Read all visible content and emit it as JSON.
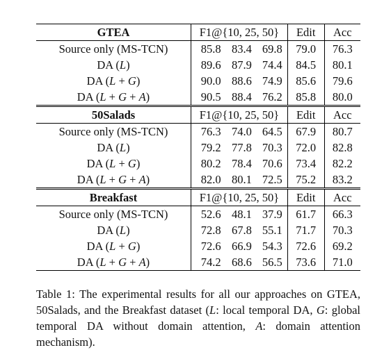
{
  "table": {
    "columns": {
      "f1": "F1@{10, 25, 50}",
      "edit": "Edit",
      "acc": "Acc"
    },
    "sections": [
      {
        "dataset": "GTEA",
        "rows": [
          {
            "method": "Source only (MS-TCN)",
            "values": [
              "85.8",
              "83.4",
              "69.8",
              "79.0",
              "76.3"
            ]
          },
          {
            "method": "DA (L)",
            "values": [
              "89.6",
              "87.9",
              "74.4",
              "84.5",
              "80.1"
            ]
          },
          {
            "method": "DA (L + G)",
            "values": [
              "90.0",
              "88.6",
              "74.9",
              "85.6",
              "79.6"
            ]
          },
          {
            "method": "DA (L + G + A)",
            "values": [
              "90.5",
              "88.4",
              "76.2",
              "85.8",
              "80.0"
            ]
          }
        ]
      },
      {
        "dataset": "50Salads",
        "rows": [
          {
            "method": "Source only (MS-TCN)",
            "values": [
              "76.3",
              "74.0",
              "64.5",
              "67.9",
              "80.7"
            ]
          },
          {
            "method": "DA (L)",
            "values": [
              "79.2",
              "77.8",
              "70.3",
              "72.0",
              "82.8"
            ]
          },
          {
            "method": "DA (L + G)",
            "values": [
              "80.2",
              "78.4",
              "70.6",
              "73.4",
              "82.2"
            ]
          },
          {
            "method": "DA (L + G + A)",
            "values": [
              "82.0",
              "80.1",
              "72.5",
              "75.2",
              "83.2"
            ]
          }
        ]
      },
      {
        "dataset": "Breakfast",
        "rows": [
          {
            "method": "Source only (MS-TCN)",
            "values": [
              "52.6",
              "48.1",
              "37.9",
              "61.7",
              "66.3"
            ]
          },
          {
            "method": "DA (L)",
            "values": [
              "72.8",
              "67.8",
              "55.1",
              "71.7",
              "70.3"
            ]
          },
          {
            "method": "DA (L + G)",
            "values": [
              "72.6",
              "66.9",
              "54.3",
              "72.6",
              "69.2"
            ]
          },
          {
            "method": "DA (L + G + A)",
            "values": [
              "74.2",
              "68.6",
              "56.5",
              "73.6",
              "71.0"
            ]
          }
        ]
      }
    ]
  },
  "caption": {
    "t1": "Table 1: The experimental results for all our approaches on GTEA, 50Salads, and the Breakfast dataset (",
    "l_sym": "L",
    "t2": ": local temporal DA, ",
    "g_sym": "G",
    "t3": ": global temporal DA without domain attention, ",
    "a_sym": "A",
    "t4": ": domain attention mechanism)."
  }
}
